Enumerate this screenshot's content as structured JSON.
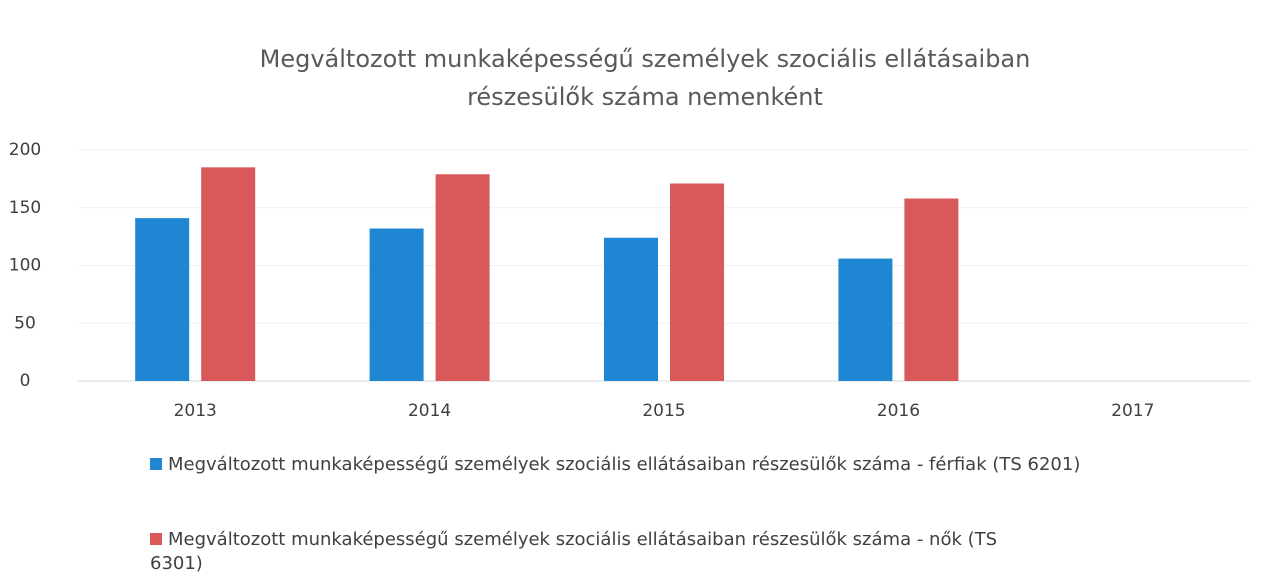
{
  "chart_data": {
    "type": "bar",
    "title": "Megváltozott munkaképességű személyek szociális ellátásaiban részesülők száma nemenként",
    "categories": [
      "2013",
      "2014",
      "2015",
      "2016",
      "2017"
    ],
    "series": [
      {
        "name": "Megváltozott munkaképességű személyek szociális ellátásaiban részesülők száma - férfiak (TS 6201)",
        "color": "#1f86d4",
        "values": [
          141,
          132,
          124,
          106,
          null
        ]
      },
      {
        "name": "Megváltozott munkaképességű személyek szociális ellátásaiban részesülők száma - nők (TS 6301)",
        "color": "#d9595b",
        "values": [
          185,
          179,
          171,
          158,
          null
        ]
      }
    ],
    "ylim": [
      0,
      200
    ],
    "yticks": [
      0,
      50,
      100,
      150,
      200
    ],
    "grid": true,
    "legend": "bottom"
  }
}
